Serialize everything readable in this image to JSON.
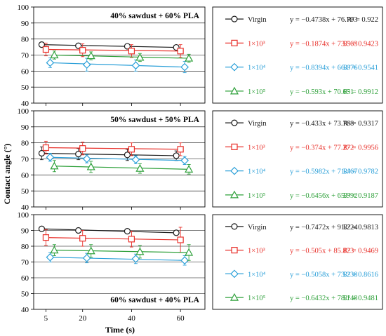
{
  "figure": {
    "ylabel": "Contact angle (°)",
    "xlabel": "Time (s)",
    "xticks": [
      "5",
      "20",
      "40",
      "60"
    ],
    "yticks": [
      "40",
      "50",
      "60",
      "70",
      "80",
      "90",
      "100"
    ]
  },
  "series_style": [
    {
      "name": "Virgin",
      "color": "#1a1a1a",
      "marker": "circle"
    },
    {
      "name": "1×10³",
      "color": "#e8302a",
      "marker": "square"
    },
    {
      "name": "1×10⁴",
      "color": "#2a9fd8",
      "marker": "diamond"
    },
    {
      "name": "1×10⁵",
      "color": "#2ea03a",
      "marker": "triangle"
    }
  ],
  "chart_data": [
    {
      "type": "scatter",
      "title": "40% sawdust + 60% PLA",
      "xlabel": "Time (s)",
      "ylabel": "Contact angle (°)",
      "ylim": [
        40,
        100
      ],
      "x": [
        5,
        20,
        40,
        60
      ],
      "title_position": "top-right",
      "series": [
        {
          "name": "Virgin",
          "values": [
            76.5,
            75.8,
            75.5,
            74.8
          ],
          "errors": [
            1.5,
            1.3,
            1.3,
            1.2
          ],
          "equation": "y = −0.4738x + 76.703",
          "r2": "R² = 0.922"
        },
        {
          "name": "1×10³",
          "values": [
            73.5,
            73.0,
            72.5,
            72.5
          ],
          "errors": [
            4.0,
            4.0,
            4.0,
            4.0
          ],
          "equation": "y = −0.1874x + 73.563",
          "r2": "R² = 0.9423"
        },
        {
          "name": "1×10⁴",
          "values": [
            65.2,
            64.0,
            63.5,
            62.5
          ],
          "errors": [
            3.0,
            4.0,
            3.5,
            3.5
          ],
          "equation": "y = −0.8394x + 66.076",
          "r2": "R² = 0.9541"
        },
        {
          "name": "1×10⁵",
          "values": [
            70.0,
            69.5,
            68.5,
            68.0
          ],
          "errors": [
            2.5,
            2.5,
            2.5,
            2.5
          ],
          "equation": "y = −0.593x + 70.651",
          "r2": "R² = 0.9912"
        }
      ]
    },
    {
      "type": "scatter",
      "title": "50% sawdust + 50% PLA",
      "xlabel": "Time (s)",
      "ylabel": "Contact angle (°)",
      "ylim": [
        40,
        100
      ],
      "x": [
        5,
        20,
        40,
        60
      ],
      "title_position": "top-right",
      "series": [
        {
          "name": "Virgin",
          "values": [
            73.5,
            73.0,
            72.5,
            72.0
          ],
          "errors": [
            4.0,
            3.5,
            3.5,
            3.0
          ],
          "equation": "y = −0.433x + 73.768",
          "r2": "R² = 0.9317"
        },
        {
          "name": "1×10³",
          "values": [
            77.0,
            76.5,
            76.0,
            76.0
          ],
          "errors": [
            4.0,
            4.0,
            4.0,
            4.0
          ],
          "equation": "y = −0.374x + 77.272",
          "r2": "R² = 0.9956"
        },
        {
          "name": "1×10⁴",
          "values": [
            71.0,
            70.0,
            69.5,
            69.0
          ],
          "errors": [
            2.5,
            2.5,
            2.5,
            2.5
          ],
          "equation": "y = −0.5982x + 71.467",
          "r2": "R² = 0.9782"
        },
        {
          "name": "1×10⁵",
          "values": [
            65.5,
            65.0,
            64.0,
            63.5
          ],
          "errors": [
            3.5,
            3.5,
            3.0,
            3.0
          ],
          "equation": "y = −0.6456x + 65.992",
          "r2": "R² = 0.9187"
        }
      ]
    },
    {
      "type": "scatter",
      "title": "60% sawdust + 40% PLA",
      "xlabel": "Time (s)",
      "ylabel": "Contact angle (°)",
      "ylim": [
        40,
        100
      ],
      "x": [
        5,
        20,
        40,
        60
      ],
      "title_position": "bottom-right",
      "series": [
        {
          "name": "Virgin",
          "values": [
            91.0,
            90.0,
            89.5,
            88.5
          ],
          "errors": [
            0.8,
            0.8,
            0.8,
            1.2
          ],
          "equation": "y = −0.7472x + 91.224",
          "r2": "R² = 0.9813"
        },
        {
          "name": "1×10³",
          "values": [
            85.5,
            85.0,
            84.5,
            84.0
          ],
          "errors": [
            5.0,
            5.0,
            5.0,
            8.0
          ],
          "equation": "y = −0.505x + 85.823",
          "r2": "R² = 0.9469"
        },
        {
          "name": "1×10⁴",
          "values": [
            73.0,
            72.5,
            72.0,
            71.0
          ],
          "errors": [
            3.0,
            3.0,
            3.0,
            3.0
          ],
          "equation": "y = −0.5058x + 73.238",
          "r2": "R² = 0.8616"
        },
        {
          "name": "1×10⁵",
          "values": [
            77.5,
            77.0,
            76.5,
            76.0
          ],
          "errors": [
            3.5,
            4.0,
            4.0,
            5.0
          ],
          "equation": "y = −0.6432x + 78.148",
          "r2": "R² = 0.9481"
        }
      ]
    }
  ]
}
